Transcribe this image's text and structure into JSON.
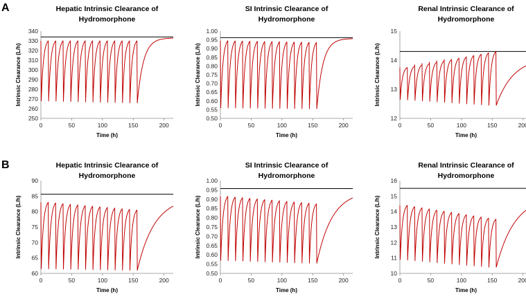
{
  "panel_labels": [
    "A",
    "B"
  ],
  "chart_data": [
    {
      "type": "line",
      "panel": "A",
      "title_lines": [
        "Hepatic Intrinsic Clearance of",
        "Hydromorphone"
      ],
      "xlabel": "Time (h)",
      "ylabel": "Intrinsic Clearance (L/h)",
      "xlim": [
        0,
        215
      ],
      "ylim": [
        250,
        340
      ],
      "xticks": [
        0,
        50,
        100,
        150,
        200
      ],
      "yticks": [
        250,
        260,
        270,
        280,
        290,
        300,
        310,
        320,
        330,
        340
      ],
      "ytick_decimals": 0,
      "reference_line": 334,
      "simulation": {
        "dose_interval_h": 12,
        "n_doses": 13,
        "peak_start": 330,
        "peak_end": 330,
        "trough_start": 268,
        "trough_end": 266,
        "steady_state": 333,
        "tau_h": 10
      }
    },
    {
      "type": "line",
      "panel": "A",
      "title_lines": [
        "SI Intrinsic Clearance of",
        "Hydromorphone"
      ],
      "xlabel": "Time (h)",
      "ylabel": "Intrinsic Clearance (L/h)",
      "xlim": [
        0,
        215
      ],
      "ylim": [
        0.5,
        1.0
      ],
      "xticks": [
        0,
        50,
        100,
        150,
        200
      ],
      "yticks": [
        0.5,
        0.55,
        0.6,
        0.65,
        0.7,
        0.75,
        0.8,
        0.85,
        0.9,
        0.95,
        1.0
      ],
      "ytick_decimals": 2,
      "reference_line": 0.963,
      "simulation": {
        "dose_interval_h": 12,
        "n_doses": 13,
        "peak_start": 0.945,
        "peak_end": 0.935,
        "trough_start": 0.56,
        "trough_end": 0.555,
        "steady_state": 0.958,
        "tau_h": 10
      }
    },
    {
      "type": "line",
      "panel": "A",
      "title_lines": [
        "Renal Intrinsic Clearance of",
        "Hydromorphone"
      ],
      "xlabel": "Time (h)",
      "ylabel": "Intrinsic Clearance (L/h)",
      "xlim": [
        0,
        215
      ],
      "ylim": [
        12,
        15
      ],
      "xticks": [
        0,
        50,
        100,
        150,
        200
      ],
      "yticks": [
        12,
        13,
        14,
        15
      ],
      "ytick_decimals": 0,
      "reference_line": 14.3,
      "simulation": {
        "dose_interval_h": 12,
        "n_doses": 13,
        "peak_start": 13.75,
        "peak_end": 14.3,
        "trough_start": 12.65,
        "trough_end": 12.45,
        "steady_state": 14.1,
        "tau_h": 28
      }
    },
    {
      "type": "line",
      "panel": "B",
      "title_lines": [
        "Hepatic Intrinsic Clearance of",
        "Hydromorphone"
      ],
      "xlabel": "Time (h)",
      "ylabel": "Intrinsic Clearance (L/h)",
      "xlim": [
        0,
        215
      ],
      "ylim": [
        60,
        90
      ],
      "xticks": [
        0,
        50,
        100,
        150,
        200
      ],
      "yticks": [
        60,
        65,
        70,
        75,
        80,
        85,
        90
      ],
      "ytick_decimals": 0,
      "reference_line": 85.6,
      "simulation": {
        "dose_interval_h": 12,
        "n_doses": 13,
        "peak_start": 83,
        "peak_end": 80.5,
        "trough_start": 61.5,
        "trough_end": 61.0,
        "steady_state": 84.7,
        "tau_h": 28
      }
    },
    {
      "type": "line",
      "panel": "B",
      "title_lines": [
        "SI Intrinsic Clearance of",
        "Hydromorphone"
      ],
      "xlabel": "Time (h)",
      "ylabel": "Intrinsic Clearance (L/h)",
      "xlim": [
        0,
        215
      ],
      "ylim": [
        0.5,
        1.0
      ],
      "xticks": [
        0,
        50,
        100,
        150,
        200
      ],
      "yticks": [
        0.5,
        0.55,
        0.6,
        0.65,
        0.7,
        0.75,
        0.8,
        0.85,
        0.9,
        0.95,
        1.0
      ],
      "ytick_decimals": 2,
      "reference_line": 0.957,
      "simulation": {
        "dose_interval_h": 12,
        "n_doses": 13,
        "peak_start": 0.915,
        "peak_end": 0.875,
        "trough_start": 0.57,
        "trough_end": 0.555,
        "steady_state": 0.945,
        "tau_h": 25
      }
    },
    {
      "type": "line",
      "panel": "B",
      "title_lines": [
        "Renal Intrinsic Clearance of",
        "Hydromorphone"
      ],
      "xlabel": "Time (h)",
      "ylabel": "Intrinsic Clearance (L/h)",
      "xlim": [
        0,
        215
      ],
      "ylim": [
        10,
        16
      ],
      "xticks": [
        0,
        50,
        100,
        150,
        200
      ],
      "yticks": [
        10,
        11,
        12,
        13,
        14,
        15,
        16
      ],
      "ytick_decimals": 0,
      "reference_line": 15.5,
      "simulation": {
        "dose_interval_h": 12,
        "n_doses": 13,
        "peak_start": 14.4,
        "peak_end": 13.5,
        "trough_start": 10.9,
        "trough_end": 10.4,
        "steady_state": 15.0,
        "tau_h": 30
      }
    }
  ]
}
